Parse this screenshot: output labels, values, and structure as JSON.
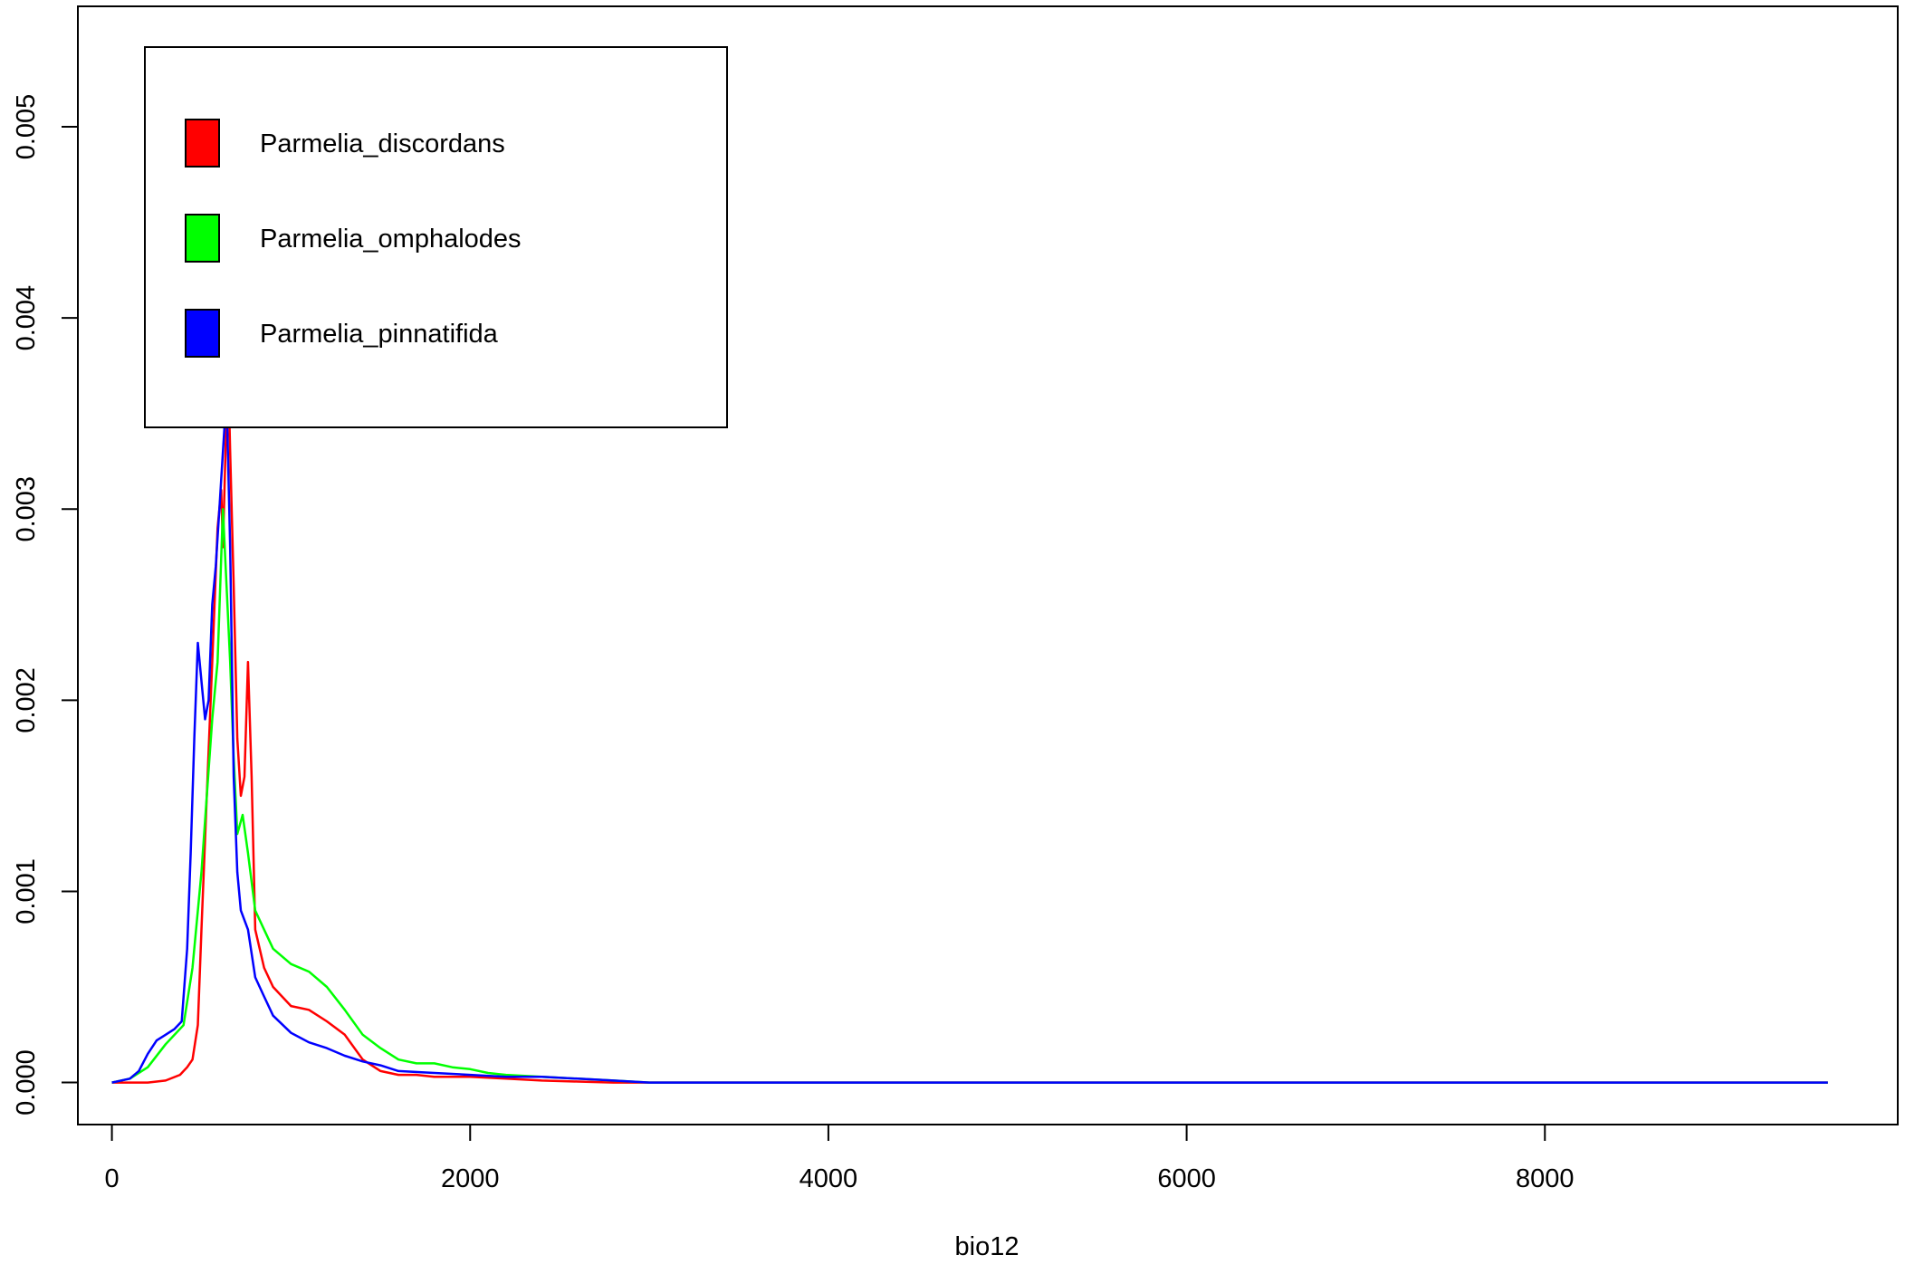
{
  "chart_data": {
    "type": "line",
    "title": "",
    "xlabel": "bio12",
    "ylabel": "",
    "xlim": [
      -190,
      9970
    ],
    "ylim": [
      -0.00022,
      0.00563
    ],
    "grid": false,
    "legend_position": "top-left",
    "x_ticks": [
      {
        "value": 0,
        "label": "0"
      },
      {
        "value": 2000,
        "label": "2000"
      },
      {
        "value": 4000,
        "label": "4000"
      },
      {
        "value": 6000,
        "label": "6000"
      },
      {
        "value": 8000,
        "label": "8000"
      }
    ],
    "y_ticks": [
      {
        "value": 0,
        "label": "0.000"
      },
      {
        "value": 0.001,
        "label": "0.001"
      },
      {
        "value": 0.002,
        "label": "0.002"
      },
      {
        "value": 0.003,
        "label": "0.003"
      },
      {
        "value": 0.004,
        "label": "0.004"
      },
      {
        "value": 0.005,
        "label": "0.005"
      }
    ],
    "series": [
      {
        "name": "Parmelia_discordans",
        "color": "#ff0000",
        "x": [
          0,
          200,
          300,
          380,
          420,
          450,
          480,
          500,
          530,
          560,
          590,
          610,
          620,
          640,
          650,
          660,
          680,
          700,
          720,
          740,
          760,
          780,
          800,
          850,
          900,
          1000,
          1100,
          1200,
          1300,
          1400,
          1500,
          1600,
          1700,
          1800,
          2000,
          2200,
          2400,
          2600,
          2800,
          3000,
          4000,
          6000,
          8000,
          9580
        ],
        "y": [
          0,
          0,
          1e-05,
          4e-05,
          8e-05,
          0.00012,
          0.0003,
          0.0008,
          0.0015,
          0.0022,
          0.0029,
          0.0031,
          0.0028,
          0.0035,
          0.0037,
          0.0033,
          0.0026,
          0.0018,
          0.0015,
          0.0016,
          0.0022,
          0.0016,
          0.0008,
          0.0006,
          0.0005,
          0.0004,
          0.00038,
          0.00032,
          0.00025,
          0.00012,
          6e-05,
          4e-05,
          4e-05,
          3e-05,
          3e-05,
          2e-05,
          1e-05,
          5e-06,
          0,
          0,
          0,
          0,
          0,
          0
        ]
      },
      {
        "name": "Parmelia_omphalodes",
        "color": "#00ff00",
        "x": [
          0,
          100,
          200,
          300,
          400,
          450,
          500,
          530,
          560,
          590,
          620,
          640,
          660,
          680,
          700,
          730,
          760,
          800,
          850,
          900,
          1000,
          1100,
          1200,
          1300,
          1400,
          1500,
          1600,
          1700,
          1800,
          1900,
          2000,
          2100,
          2200,
          2400,
          2600,
          2800,
          3000,
          4000,
          6000,
          8000,
          9580
        ],
        "y": [
          0,
          2e-05,
          8e-05,
          0.0002,
          0.0003,
          0.0006,
          0.0011,
          0.0015,
          0.0019,
          0.0022,
          0.003,
          0.0026,
          0.0022,
          0.0017,
          0.0013,
          0.0014,
          0.0012,
          0.0009,
          0.0008,
          0.0007,
          0.00062,
          0.00058,
          0.0005,
          0.00038,
          0.00025,
          0.00018,
          0.00012,
          0.0001,
          0.0001,
          8e-05,
          7e-05,
          5e-05,
          4e-05,
          3e-05,
          2e-05,
          1e-05,
          0,
          0,
          0,
          0,
          0
        ]
      },
      {
        "name": "Parmelia_pinnatifida",
        "color": "#0000ff",
        "x": [
          0,
          100,
          150,
          200,
          250,
          300,
          350,
          390,
          420,
          440,
          460,
          480,
          500,
          520,
          540,
          560,
          580,
          600,
          620,
          640,
          660,
          680,
          700,
          720,
          760,
          800,
          850,
          900,
          1000,
          1100,
          1200,
          1300,
          1400,
          1500,
          1600,
          1800,
          2000,
          2200,
          2400,
          2600,
          2800,
          3000,
          4000,
          6000,
          8000,
          9580
        ],
        "y": [
          0,
          2e-05,
          6e-05,
          0.00015,
          0.00022,
          0.00025,
          0.00028,
          0.00032,
          0.0007,
          0.0012,
          0.0018,
          0.0023,
          0.0021,
          0.0019,
          0.002,
          0.0025,
          0.0027,
          0.003,
          0.0033,
          0.0036,
          0.0028,
          0.0016,
          0.0011,
          0.0009,
          0.0008,
          0.00055,
          0.00045,
          0.00035,
          0.00026,
          0.00021,
          0.00018,
          0.00014,
          0.00011,
          9e-05,
          6e-05,
          5e-05,
          4e-05,
          3e-05,
          3e-05,
          2e-05,
          1e-05,
          0,
          0,
          0,
          0,
          0
        ]
      }
    ]
  }
}
